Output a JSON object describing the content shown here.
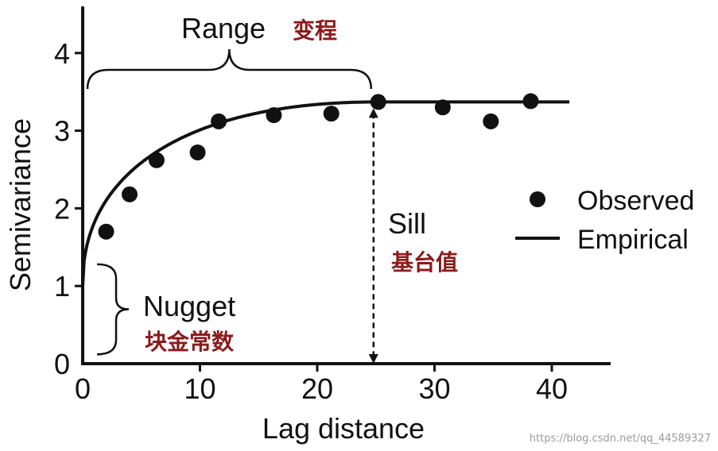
{
  "chart_data": {
    "type": "scatter",
    "xlabel": "Lag distance",
    "ylabel": "Semivariance",
    "xlim": [
      0,
      45
    ],
    "ylim": [
      0,
      4.5
    ],
    "x_ticks": [
      "0",
      "10",
      "20",
      "30",
      "40"
    ],
    "y_ticks": [
      "0",
      "1",
      "2",
      "3",
      "4"
    ],
    "legend": {
      "placement": "right",
      "observed": "Observed",
      "empirical": "Empirical"
    },
    "series": [
      {
        "name": "Observed",
        "kind": "points",
        "points": [
          {
            "x": 2.0,
            "y": 1.7
          },
          {
            "x": 4.0,
            "y": 2.18
          },
          {
            "x": 6.3,
            "y": 2.62
          },
          {
            "x": 9.8,
            "y": 2.72
          },
          {
            "x": 11.6,
            "y": 3.12
          },
          {
            "x": 16.3,
            "y": 3.2
          },
          {
            "x": 21.2,
            "y": 3.22
          },
          {
            "x": 25.2,
            "y": 3.37
          },
          {
            "x": 30.7,
            "y": 3.3
          },
          {
            "x": 34.8,
            "y": 3.12
          },
          {
            "x": 38.2,
            "y": 3.38
          }
        ]
      },
      {
        "name": "Empirical",
        "kind": "curve",
        "nugget": 1.0,
        "sill": 3.37,
        "range": 25,
        "x_end": 41.5
      }
    ],
    "annotations": {
      "range_label": "Range",
      "range_label_cn": "变程",
      "sill_label": "Sill",
      "sill_label_cn": "基台值",
      "nugget_label": "Nugget",
      "nugget_label_cn": "块金常数"
    }
  },
  "watermark": "https://blog.csdn.net/qq_44589327"
}
